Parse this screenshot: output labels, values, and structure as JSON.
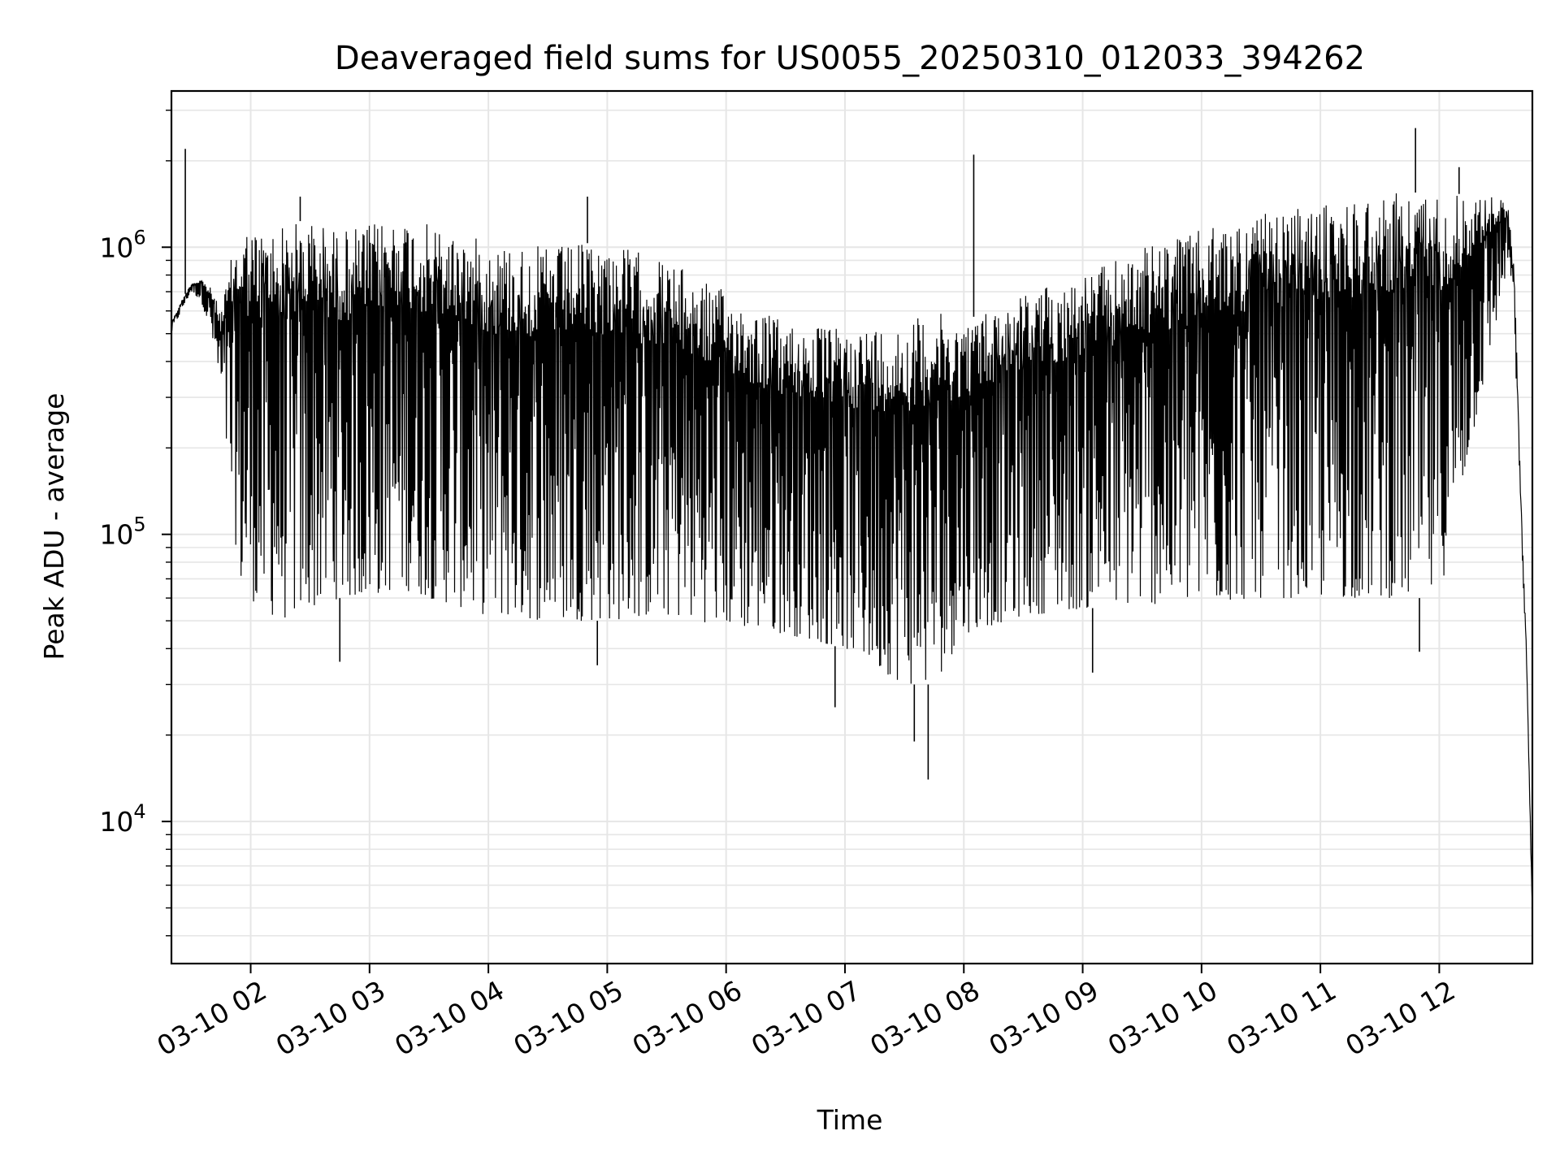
{
  "chart_data": {
    "type": "line",
    "title": "Deaveraged field sums for US0055_20250310_012033_394262",
    "xlabel": "Time",
    "ylabel": "Peak ADU - average",
    "y_scale": "log",
    "x_range": [
      "2025-03-10 01:20",
      "2025-03-10 12:47"
    ],
    "ylim": [
      3200,
      3500000
    ],
    "grid": true,
    "line_color": "#000000",
    "grid_color": "#e6e6e6",
    "x_tick_labels": [
      "03-10 02",
      "03-10 03",
      "03-10 04",
      "03-10 05",
      "03-10 06",
      "03-10 07",
      "03-10 08",
      "03-10 09",
      "03-10 10",
      "03-10 11",
      "03-10 12"
    ],
    "x_tick_values": [
      "2025-03-10 02:00",
      "2025-03-10 03:00",
      "2025-03-10 04:00",
      "2025-03-10 05:00",
      "2025-03-10 06:00",
      "2025-03-10 07:00",
      "2025-03-10 08:00",
      "2025-03-10 09:00",
      "2025-03-10 10:00",
      "2025-03-10 11:00",
      "2025-03-10 12:00"
    ],
    "y_ticks": [
      {
        "base": "10",
        "exp": "4",
        "value": 10000
      },
      {
        "base": "10",
        "exp": "5",
        "value": 100000
      },
      {
        "base": "10",
        "exp": "6",
        "value": 1000000
      }
    ],
    "series": [
      {
        "x": [
          "2025-03-10 01:20",
          "2025-03-10 01:25",
          "2025-03-10 01:30",
          "2025-03-10 01:35",
          "2025-03-10 01:40",
          "2025-03-10 01:45",
          "2025-03-10 01:50",
          "2025-03-10 01:55",
          "2025-03-10 02:05",
          "2025-03-10 02:15",
          "2025-03-10 02:30",
          "2025-03-10 02:45",
          "2025-03-10 03:00",
          "2025-03-10 03:15",
          "2025-03-10 03:30",
          "2025-03-10 04:00",
          "2025-03-10 04:30",
          "2025-03-10 05:00",
          "2025-03-10 05:30",
          "2025-03-10 06:00",
          "2025-03-10 06:30",
          "2025-03-10 07:00",
          "2025-03-10 07:30",
          "2025-03-10 07:45",
          "2025-03-10 08:00",
          "2025-03-10 08:30",
          "2025-03-10 09:00",
          "2025-03-10 09:30",
          "2025-03-10 10:00",
          "2025-03-10 10:30",
          "2025-03-10 11:00",
          "2025-03-10 11:30",
          "2025-03-10 12:00",
          "2025-03-10 12:30",
          "2025-03-10 12:35",
          "2025-03-10 12:38",
          "2025-03-10 12:41",
          "2025-03-10 12:44",
          "2025-03-10 12:47"
        ],
        "upper": [
          550000,
          650000,
          750000,
          780000,
          720000,
          600000,
          900000,
          1200000,
          1150000,
          1200000,
          1250000,
          1150000,
          1200000,
          1300000,
          1200000,
          1050000,
          1000000,
          1050000,
          900000,
          700000,
          550000,
          520000,
          550000,
          600000,
          550000,
          700000,
          800000,
          1000000,
          1150000,
          1300000,
          1400000,
          1550000,
          1550000,
          1500000,
          1400000,
          800000,
          150000,
          40000,
          5000
        ],
        "lower": [
          500000,
          600000,
          700000,
          650000,
          500000,
          300000,
          130000,
          65000,
          55000,
          50000,
          55000,
          60000,
          60000,
          65000,
          60000,
          52000,
          50000,
          50000,
          52000,
          48000,
          45000,
          40000,
          30000,
          30000,
          45000,
          52000,
          55000,
          57000,
          57000,
          60000,
          60000,
          60000,
          60000,
          600000,
          900000,
          500000,
          120000,
          35000,
          4500
        ],
        "spikes": [
          {
            "x": "2025-03-10 01:27",
            "y": 2200000
          },
          {
            "x": "2025-03-10 02:25",
            "y": 1500000
          },
          {
            "x": "2025-03-10 02:45",
            "y": 36000
          },
          {
            "x": "2025-03-10 04:50",
            "y": 1500000
          },
          {
            "x": "2025-03-10 04:55",
            "y": 35000
          },
          {
            "x": "2025-03-10 06:55",
            "y": 25000
          },
          {
            "x": "2025-03-10 07:35",
            "y": 19000
          },
          {
            "x": "2025-03-10 07:42",
            "y": 14000
          },
          {
            "x": "2025-03-10 08:05",
            "y": 2100000
          },
          {
            "x": "2025-03-10 09:05",
            "y": 33000
          },
          {
            "x": "2025-03-10 11:48",
            "y": 2600000
          },
          {
            "x": "2025-03-10 11:50",
            "y": 39000
          },
          {
            "x": "2025-03-10 12:10",
            "y": 1900000
          }
        ]
      }
    ]
  }
}
